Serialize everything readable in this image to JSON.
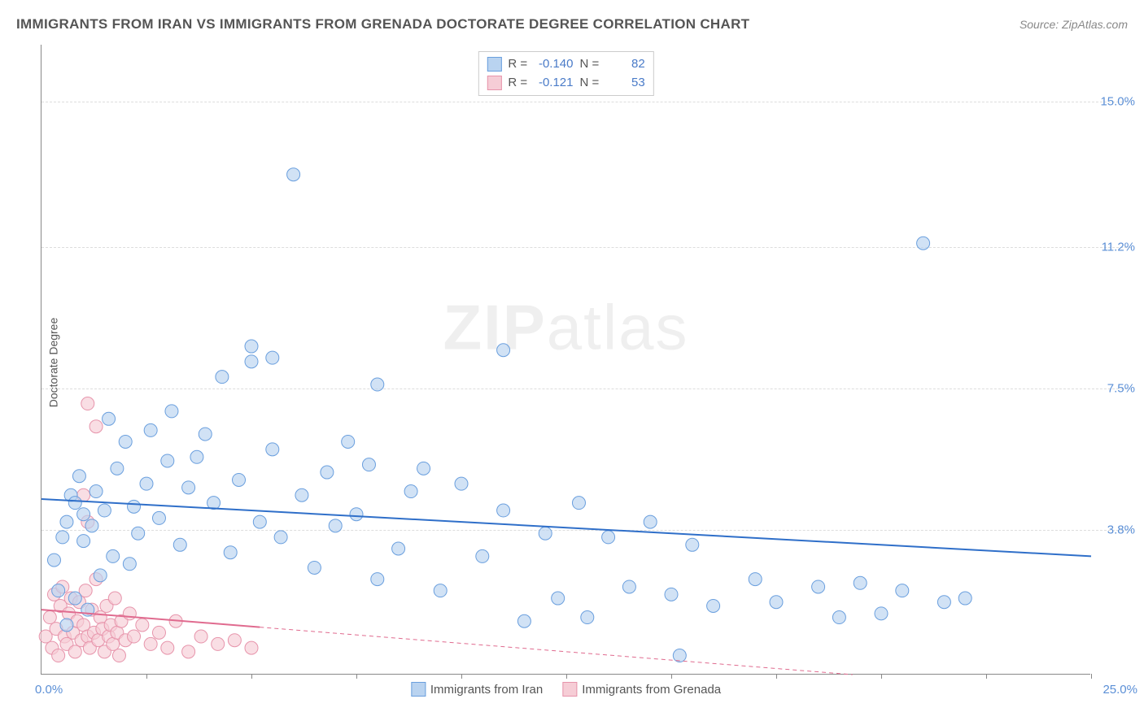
{
  "title": "IMMIGRANTS FROM IRAN VS IMMIGRANTS FROM GRENADA DOCTORATE DEGREE CORRELATION CHART",
  "source_label": "Source:",
  "source_value": "ZipAtlas.com",
  "ylabel": "Doctorate Degree",
  "watermark": {
    "bold": "ZIP",
    "rest": "atlas"
  },
  "chart": {
    "type": "scatter",
    "xlim": [
      0,
      25
    ],
    "ylim": [
      0,
      16.5
    ],
    "x_min_label": "0.0%",
    "x_max_label": "25.0%",
    "ytick_positions": [
      3.8,
      7.5,
      11.2,
      15.0
    ],
    "ytick_labels": [
      "3.8%",
      "7.5%",
      "11.2%",
      "15.0%"
    ],
    "xtick_positions": [
      2.5,
      5,
      7.5,
      10,
      12.5,
      15,
      17.5,
      20,
      22.5,
      25
    ],
    "background": "#ffffff",
    "grid_color": "#dddddd",
    "axis_color": "#888888",
    "series": [
      {
        "name": "Immigrants from Iran",
        "r": "-0.140",
        "n": "82",
        "fill": "#b9d3f0",
        "stroke": "#6a9fde",
        "marker_radius": 8,
        "trend": {
          "color": "#2f6fc9",
          "width": 2,
          "dash": "none",
          "y_at_x0": 4.6,
          "y_at_xmax": 3.1
        },
        "points": [
          [
            0.3,
            3.0
          ],
          [
            0.4,
            2.2
          ],
          [
            0.5,
            3.6
          ],
          [
            0.6,
            1.3
          ],
          [
            0.6,
            4.0
          ],
          [
            0.7,
            4.7
          ],
          [
            0.8,
            2.0
          ],
          [
            0.8,
            4.5
          ],
          [
            0.9,
            5.2
          ],
          [
            1.0,
            3.5
          ],
          [
            1.0,
            4.2
          ],
          [
            1.1,
            1.7
          ],
          [
            1.2,
            3.9
          ],
          [
            1.3,
            4.8
          ],
          [
            1.4,
            2.6
          ],
          [
            1.5,
            4.3
          ],
          [
            1.6,
            6.7
          ],
          [
            1.7,
            3.1
          ],
          [
            1.8,
            5.4
          ],
          [
            2.0,
            6.1
          ],
          [
            2.1,
            2.9
          ],
          [
            2.2,
            4.4
          ],
          [
            2.3,
            3.7
          ],
          [
            2.5,
            5.0
          ],
          [
            2.6,
            6.4
          ],
          [
            2.8,
            4.1
          ],
          [
            3.0,
            5.6
          ],
          [
            3.1,
            6.9
          ],
          [
            3.3,
            3.4
          ],
          [
            3.5,
            4.9
          ],
          [
            3.7,
            5.7
          ],
          [
            3.9,
            6.3
          ],
          [
            4.1,
            4.5
          ],
          [
            4.3,
            7.8
          ],
          [
            4.5,
            3.2
          ],
          [
            4.7,
            5.1
          ],
          [
            5.0,
            8.2
          ],
          [
            5.2,
            4.0
          ],
          [
            5.5,
            5.9
          ],
          [
            5.7,
            3.6
          ],
          [
            5.0,
            8.6
          ],
          [
            5.5,
            8.3
          ],
          [
            6.0,
            13.1
          ],
          [
            6.2,
            4.7
          ],
          [
            6.5,
            2.8
          ],
          [
            6.8,
            5.3
          ],
          [
            7.0,
            3.9
          ],
          [
            7.3,
            6.1
          ],
          [
            7.5,
            4.2
          ],
          [
            7.8,
            5.5
          ],
          [
            8.0,
            2.5
          ],
          [
            8.0,
            7.6
          ],
          [
            8.5,
            3.3
          ],
          [
            8.8,
            4.8
          ],
          [
            9.1,
            5.4
          ],
          [
            9.5,
            2.2
          ],
          [
            10.0,
            5.0
          ],
          [
            10.5,
            3.1
          ],
          [
            11.0,
            8.5
          ],
          [
            11.0,
            4.3
          ],
          [
            11.5,
            1.4
          ],
          [
            12.0,
            3.7
          ],
          [
            12.3,
            2.0
          ],
          [
            12.8,
            4.5
          ],
          [
            13.0,
            1.5
          ],
          [
            13.5,
            3.6
          ],
          [
            14.0,
            2.3
          ],
          [
            14.5,
            4.0
          ],
          [
            15.0,
            2.1
          ],
          [
            15.2,
            0.5
          ],
          [
            15.5,
            3.4
          ],
          [
            16.0,
            1.8
          ],
          [
            17.0,
            2.5
          ],
          [
            17.5,
            1.9
          ],
          [
            18.5,
            2.3
          ],
          [
            19.0,
            1.5
          ],
          [
            19.5,
            2.4
          ],
          [
            20.0,
            1.6
          ],
          [
            20.5,
            2.2
          ],
          [
            21.0,
            11.3
          ],
          [
            21.5,
            1.9
          ],
          [
            22.0,
            2.0
          ]
        ]
      },
      {
        "name": "Immigrants from Grenada",
        "r": "-0.121",
        "n": "53",
        "fill": "#f6cdd6",
        "stroke": "#e794ab",
        "marker_radius": 8,
        "trend": {
          "color": "#e06b8f",
          "width": 2,
          "dash": "5,4",
          "y_at_x0": 1.7,
          "y_at_xmax": -0.5,
          "solid_until_x": 5.2
        },
        "points": [
          [
            0.1,
            1.0
          ],
          [
            0.2,
            1.5
          ],
          [
            0.25,
            0.7
          ],
          [
            0.3,
            2.1
          ],
          [
            0.35,
            1.2
          ],
          [
            0.4,
            0.5
          ],
          [
            0.45,
            1.8
          ],
          [
            0.5,
            2.3
          ],
          [
            0.55,
            1.0
          ],
          [
            0.6,
            0.8
          ],
          [
            0.65,
            1.6
          ],
          [
            0.7,
            2.0
          ],
          [
            0.75,
            1.1
          ],
          [
            0.8,
            0.6
          ],
          [
            0.85,
            1.4
          ],
          [
            0.9,
            1.9
          ],
          [
            0.95,
            0.9
          ],
          [
            1.0,
            1.3
          ],
          [
            1.05,
            2.2
          ],
          [
            1.1,
            1.0
          ],
          [
            1.15,
            0.7
          ],
          [
            1.2,
            1.7
          ],
          [
            1.25,
            1.1
          ],
          [
            1.3,
            2.5
          ],
          [
            1.35,
            0.9
          ],
          [
            1.4,
            1.5
          ],
          [
            1.45,
            1.2
          ],
          [
            1.5,
            0.6
          ],
          [
            1.55,
            1.8
          ],
          [
            1.6,
            1.0
          ],
          [
            1.65,
            1.3
          ],
          [
            1.7,
            0.8
          ],
          [
            1.75,
            2.0
          ],
          [
            1.8,
            1.1
          ],
          [
            1.85,
            0.5
          ],
          [
            1.1,
            4.0
          ],
          [
            1.0,
            4.7
          ],
          [
            1.3,
            6.5
          ],
          [
            1.1,
            7.1
          ],
          [
            1.9,
            1.4
          ],
          [
            2.0,
            0.9
          ],
          [
            2.1,
            1.6
          ],
          [
            2.2,
            1.0
          ],
          [
            2.4,
            1.3
          ],
          [
            2.6,
            0.8
          ],
          [
            2.8,
            1.1
          ],
          [
            3.0,
            0.7
          ],
          [
            3.2,
            1.4
          ],
          [
            3.5,
            0.6
          ],
          [
            3.8,
            1.0
          ],
          [
            4.2,
            0.8
          ],
          [
            4.6,
            0.9
          ],
          [
            5.0,
            0.7
          ]
        ]
      }
    ]
  },
  "legend_bottom": [
    {
      "label": "Immigrants from Iran",
      "fill": "#b9d3f0",
      "stroke": "#6a9fde"
    },
    {
      "label": "Immigrants from Grenada",
      "fill": "#f6cdd6",
      "stroke": "#e794ab"
    }
  ]
}
